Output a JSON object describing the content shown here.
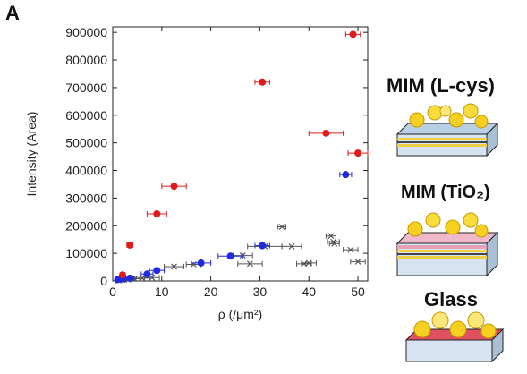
{
  "panel_label": "A",
  "colors": {
    "glass": "#555555",
    "mim_tio2": "#1f2be0",
    "mim_lcys": "#e01b1b",
    "gold": "#f5c21a"
  },
  "sample_labels": {
    "mim_lcys": "MIM (L-cys)",
    "mim_tio2": "MIM (TiO₂)",
    "glass": "Glass"
  },
  "chart_data": {
    "type": "scatter",
    "title": "",
    "xlabel": "ρ (/μm²)",
    "ylabel": "Intensity (Area)",
    "xlim": [
      0,
      52
    ],
    "ylim": [
      0,
      920000
    ],
    "xticks": [
      0,
      10,
      20,
      30,
      40,
      50
    ],
    "yticks": [
      0,
      100000,
      200000,
      300000,
      400000,
      500000,
      600000,
      700000,
      800000,
      900000
    ],
    "legend_position": "top-right, outside plot",
    "series": [
      {
        "name": "Glass",
        "color": "#555555",
        "marker": "x",
        "points": [
          {
            "x": 1.2,
            "y": 2000,
            "xerr": 0.6
          },
          {
            "x": 2.0,
            "y": 4000,
            "xerr": 0.8
          },
          {
            "x": 3.0,
            "y": 5000,
            "xerr": 0.8
          },
          {
            "x": 4.5,
            "y": 8000,
            "xerr": 1.0
          },
          {
            "x": 6.0,
            "y": 10000,
            "xerr": 1.5
          },
          {
            "x": 8.0,
            "y": 12000,
            "xerr": 1.5
          },
          {
            "x": 12.5,
            "y": 52000,
            "xerr": 2.0
          },
          {
            "x": 16.5,
            "y": 60000,
            "xerr": 1.5
          },
          {
            "x": 26.5,
            "y": 92000,
            "xerr": 2.0
          },
          {
            "x": 28.0,
            "y": 62000,
            "xerr": 2.5
          },
          {
            "x": 31.0,
            "y": 125000,
            "xerr": 3.5
          },
          {
            "x": 34.5,
            "y": 196000,
            "xerr": 0.8
          },
          {
            "x": 36.5,
            "y": 125000,
            "xerr": 2.0
          },
          {
            "x": 39.0,
            "y": 62000,
            "xerr": 1.5
          },
          {
            "x": 40.0,
            "y": 65000,
            "xerr": 1.5
          },
          {
            "x": 44.5,
            "y": 163000,
            "xerr": 1.0
          },
          {
            "x": 45.0,
            "y": 142000,
            "xerr": 1.2
          },
          {
            "x": 45.2,
            "y": 135000,
            "xerr": 1.0
          },
          {
            "x": 48.5,
            "y": 113000,
            "xerr": 1.5
          },
          {
            "x": 50.0,
            "y": 70000,
            "xerr": 1.5
          }
        ]
      },
      {
        "name": "MIM (TiO2)",
        "color": "#1f2be0",
        "marker": "circle",
        "points": [
          {
            "x": 1.0,
            "y": 5000,
            "xerr": 0.5
          },
          {
            "x": 2.0,
            "y": 8000,
            "xerr": 0.6
          },
          {
            "x": 3.5,
            "y": 10000,
            "xerr": 0.8
          },
          {
            "x": 7.0,
            "y": 25000,
            "xerr": 1.2
          },
          {
            "x": 9.0,
            "y": 38000,
            "xerr": 1.5
          },
          {
            "x": 18.0,
            "y": 65000,
            "xerr": 2.0
          },
          {
            "x": 24.0,
            "y": 90000,
            "xerr": 2.5
          },
          {
            "x": 30.5,
            "y": 128000,
            "xerr": 1.5
          },
          {
            "x": 47.5,
            "y": 385000,
            "xerr": 1.2
          }
        ]
      },
      {
        "name": "MIM (L-Cys)",
        "color": "#e01b1b",
        "marker": "circle",
        "points": [
          {
            "x": 2.0,
            "y": 22000,
            "xerr": 0.5
          },
          {
            "x": 3.5,
            "y": 130000,
            "xerr": 0.6
          },
          {
            "x": 9.0,
            "y": 243000,
            "xerr": 2.0
          },
          {
            "x": 12.5,
            "y": 343000,
            "xerr": 2.5
          },
          {
            "x": 30.5,
            "y": 720000,
            "xerr": 1.5
          },
          {
            "x": 43.5,
            "y": 535000,
            "xerr": 3.5
          },
          {
            "x": 50.0,
            "y": 463000,
            "xerr": 2.0
          },
          {
            "x": 49.0,
            "y": 893000,
            "xerr": 1.5
          }
        ]
      }
    ],
    "legend": [
      {
        "label": "Glass",
        "marker": "x",
        "color": "#555555"
      },
      {
        "label": "MIM (TiO",
        "sub": "2",
        "after": ")",
        "marker": "circle",
        "color": "#1f2be0"
      },
      {
        "label": "MIM (L-Cys)",
        "marker": "circle",
        "color": "#e01b1b"
      }
    ]
  }
}
